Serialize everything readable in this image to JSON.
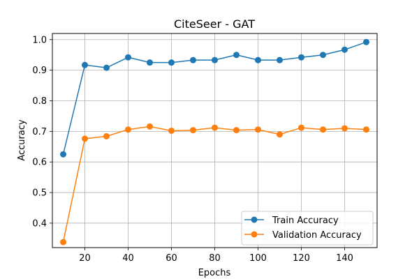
{
  "chart_data": {
    "type": "line",
    "title": "CiteSeer - GAT",
    "xlabel": "Epochs",
    "ylabel": "Accuracy",
    "x": [
      10,
      20,
      30,
      40,
      50,
      60,
      70,
      80,
      90,
      100,
      110,
      120,
      130,
      140,
      150
    ],
    "xlim": [
      5,
      155
    ],
    "ylim": [
      0.32,
      1.02
    ],
    "xticks": [
      20,
      40,
      60,
      80,
      100,
      120,
      140
    ],
    "xtick_labels": [
      "20",
      "40",
      "60",
      "80",
      "100",
      "120",
      "140"
    ],
    "yticks": [
      0.4,
      0.5,
      0.6,
      0.7,
      0.8,
      0.9,
      1.0
    ],
    "ytick_labels": [
      "0.4",
      "0.5",
      "0.6",
      "0.7",
      "0.8",
      "0.9",
      "1.0"
    ],
    "grid": true,
    "legend_position": "bottom-right",
    "series": [
      {
        "name": "Train Accuracy",
        "color": "#1f77b4",
        "values": [
          0.625,
          0.917,
          0.908,
          0.942,
          0.925,
          0.925,
          0.933,
          0.933,
          0.95,
          0.933,
          0.933,
          0.942,
          0.95,
          0.967,
          0.992
        ]
      },
      {
        "name": "Validation Accuracy",
        "color": "#ff7f0e",
        "values": [
          0.338,
          0.676,
          0.684,
          0.706,
          0.716,
          0.702,
          0.704,
          0.712,
          0.704,
          0.706,
          0.69,
          0.712,
          0.706,
          0.71,
          0.706
        ]
      }
    ]
  }
}
